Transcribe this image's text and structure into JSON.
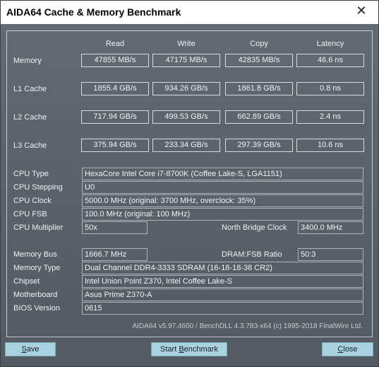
{
  "window": {
    "title": "AIDA64 Cache & Memory Benchmark",
    "close_glyph": "✕"
  },
  "columns": [
    "Read",
    "Write",
    "Copy",
    "Latency"
  ],
  "bench": {
    "memory": {
      "label": "Memory",
      "read": "47855 MB/s",
      "write": "47175 MB/s",
      "copy": "42835 MB/s",
      "latency": "46.6 ns"
    },
    "l1": {
      "label": "L1 Cache",
      "read": "1855.4 GB/s",
      "write": "934.26 GB/s",
      "copy": "1861.8 GB/s",
      "latency": "0.8 ns"
    },
    "l2": {
      "label": "L2 Cache",
      "read": "717.94 GB/s",
      "write": "499.53 GB/s",
      "copy": "662.89 GB/s",
      "latency": "2.4 ns"
    },
    "l3": {
      "label": "L3 Cache",
      "read": "375.94 GB/s",
      "write": "233.34 GB/s",
      "copy": "297.39 GB/s",
      "latency": "10.6 ns"
    }
  },
  "cpu": {
    "type_label": "CPU Type",
    "type": "HexaCore Intel Core i7-8700K  (Coffee Lake-S, LGA1151)",
    "stepping_label": "CPU Stepping",
    "stepping": "U0",
    "clock_label": "CPU Clock",
    "clock": "5000.0 MHz  (original: 3700 MHz, overclock: 35%)",
    "fsb_label": "CPU FSB",
    "fsb": "100.0 MHz  (original: 100 MHz)",
    "multiplier_label": "CPU Multiplier",
    "multiplier": "50x",
    "nb_clock_label": "North Bridge Clock",
    "nb_clock": "3400.0 MHz"
  },
  "memory_info": {
    "bus_label": "Memory Bus",
    "bus": "1666.7 MHz",
    "ratio_label": "DRAM:FSB Ratio",
    "ratio": "50:3",
    "type_label": "Memory Type",
    "type": "Dual Channel DDR4-3333 SDRAM  (16-18-18-38 CR2)",
    "chipset_label": "Chipset",
    "chipset": "Intel Union Point Z370, Intel Coffee Lake-S",
    "motherboard_label": "Motherboard",
    "motherboard": "Asus Prime Z370-A",
    "bios_label": "BIOS Version",
    "bios": "0615"
  },
  "footer": {
    "copyright": "AIDA64 v5.97.4600 / BenchDLL 4.3.783-x64  (c) 1995-2018 FinalWire Ltd."
  },
  "buttons": {
    "save_pre": "",
    "save_u": "S",
    "save_post": "ave",
    "start_pre": "Start ",
    "start_u": "B",
    "start_post": "enchmark",
    "close_pre": "",
    "close_u": "C",
    "close_post": "lose"
  },
  "colors": {
    "panel": "#5d636b",
    "button": "#a9d2e0",
    "title_bg": "#ffffff"
  }
}
